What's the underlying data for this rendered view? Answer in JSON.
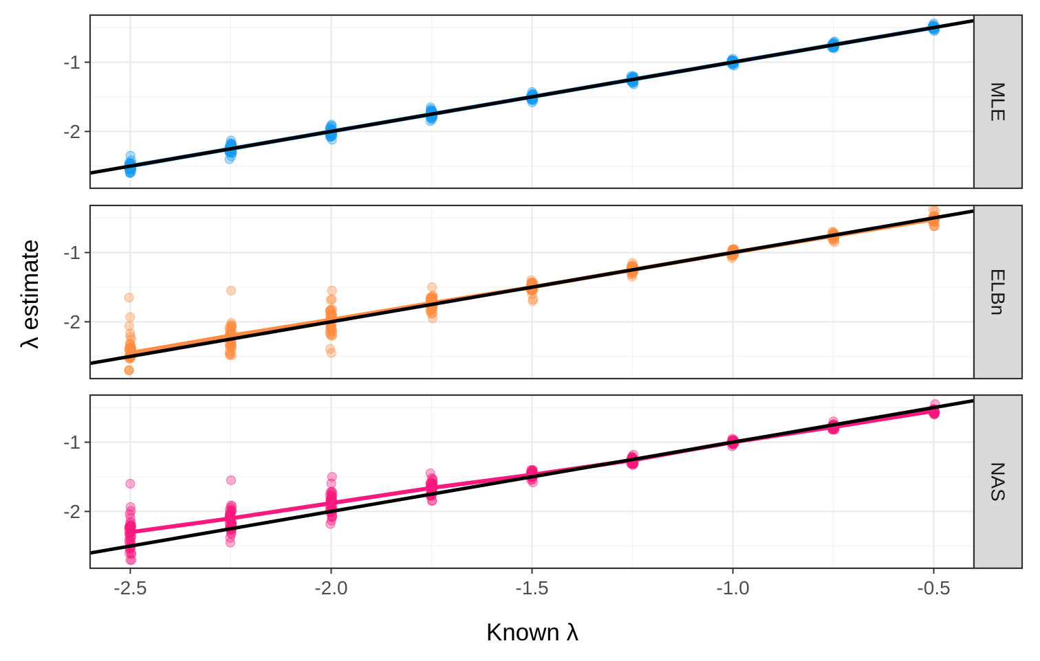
{
  "chart_data": {
    "type": "scatter",
    "xlabel": "Known λ",
    "ylabel": "λ estimate",
    "xlim": [
      -2.6,
      -0.4
    ],
    "ylim": [
      -2.82,
      -0.32
    ],
    "x_ticks": [
      -2.5,
      -2.0,
      -1.5,
      -1.0,
      -0.5
    ],
    "x_tick_labels": [
      "-2.5",
      "-2.0",
      "-1.5",
      "-1.0",
      "-0.5"
    ],
    "y_ticks": [
      -1,
      -2
    ],
    "y_tick_labels": [
      "-1",
      "-2"
    ],
    "grid": true,
    "reference_line": {
      "slope": 1,
      "intercept": 0,
      "color": "#000000"
    },
    "panels": [
      {
        "label": "MLE",
        "color": "#1a9af0",
        "known": [
          -2.5,
          -2.25,
          -2.0,
          -1.75,
          -1.5,
          -1.25,
          -1.0,
          -0.75,
          -0.5
        ],
        "estimate_min": [
          -2.6,
          -2.4,
          -2.12,
          -1.85,
          -1.58,
          -1.32,
          -1.05,
          -0.8,
          -0.55
        ],
        "estimate_max": [
          -2.35,
          -2.13,
          -1.9,
          -1.65,
          -1.43,
          -1.2,
          -0.95,
          -0.7,
          -0.44
        ],
        "estimate_mean": [
          -2.5,
          -2.25,
          -2.0,
          -1.75,
          -1.5,
          -1.25,
          -1.0,
          -0.75,
          -0.5
        ]
      },
      {
        "label": "ELBn",
        "color": "#ff8c42",
        "known": [
          -2.5,
          -2.25,
          -2.0,
          -1.75,
          -1.5,
          -1.25,
          -1.0,
          -0.75,
          -0.5
        ],
        "estimate_min": [
          -2.7,
          -2.48,
          -2.45,
          -1.95,
          -1.7,
          -1.35,
          -1.08,
          -0.85,
          -0.62
        ],
        "estimate_max": [
          -1.65,
          -1.55,
          -1.55,
          -1.5,
          -1.4,
          -1.15,
          -0.95,
          -0.7,
          -0.38
        ],
        "estimate_mean": [
          -2.45,
          -2.2,
          -1.97,
          -1.73,
          -1.5,
          -1.25,
          -1.0,
          -0.76,
          -0.52
        ]
      },
      {
        "label": "NAS",
        "color": "#f7197d",
        "known": [
          -2.5,
          -2.25,
          -2.0,
          -1.75,
          -1.5,
          -1.25,
          -1.0,
          -0.75,
          -0.5
        ],
        "estimate_min": [
          -2.7,
          -2.45,
          -2.18,
          -1.85,
          -1.58,
          -1.33,
          -1.06,
          -0.82,
          -0.6
        ],
        "estimate_max": [
          -1.6,
          -1.55,
          -1.5,
          -1.45,
          -1.4,
          -1.18,
          -0.95,
          -0.7,
          -0.45
        ],
        "estimate_mean": [
          -2.3,
          -2.1,
          -1.88,
          -1.66,
          -1.47,
          -1.26,
          -1.0,
          -0.78,
          -0.55
        ]
      }
    ]
  }
}
